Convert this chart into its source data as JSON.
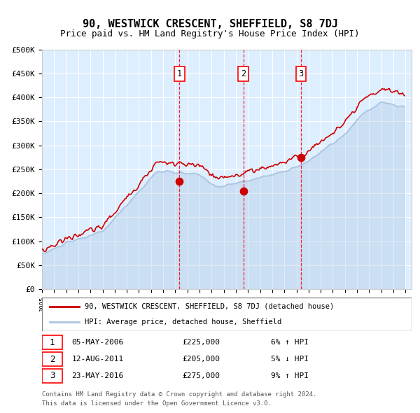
{
  "title": "90, WESTWICK CRESCENT, SHEFFIELD, S8 7DJ",
  "subtitle": "Price paid vs. HM Land Registry's House Price Index (HPI)",
  "legend_line1": "90, WESTWICK CRESCENT, SHEFFIELD, S8 7DJ (detached house)",
  "legend_line2": "HPI: Average price, detached house, Sheffield",
  "footer1": "Contains HM Land Registry data © Crown copyright and database right 2024.",
  "footer2": "This data is licensed under the Open Government Licence v3.0.",
  "transactions": [
    {
      "num": 1,
      "date": "05-MAY-2006",
      "price": 225000,
      "pct": "6%",
      "dir": "↑"
    },
    {
      "num": 2,
      "date": "12-AUG-2011",
      "price": 205000,
      "pct": "5%",
      "dir": "↓"
    },
    {
      "num": 3,
      "date": "23-MAY-2016",
      "price": 275000,
      "pct": "9%",
      "dir": "↑"
    }
  ],
  "sale_years": [
    2006.35,
    2011.61,
    2016.38
  ],
  "sale_prices": [
    225000,
    205000,
    275000
  ],
  "hpi_color": "#aac4e0",
  "price_color": "#cc0000",
  "plot_bg": "#ddeeff",
  "ylim": [
    0,
    500000
  ],
  "ytick_step": 50000,
  "start_year": 1995,
  "end_year": 2025
}
